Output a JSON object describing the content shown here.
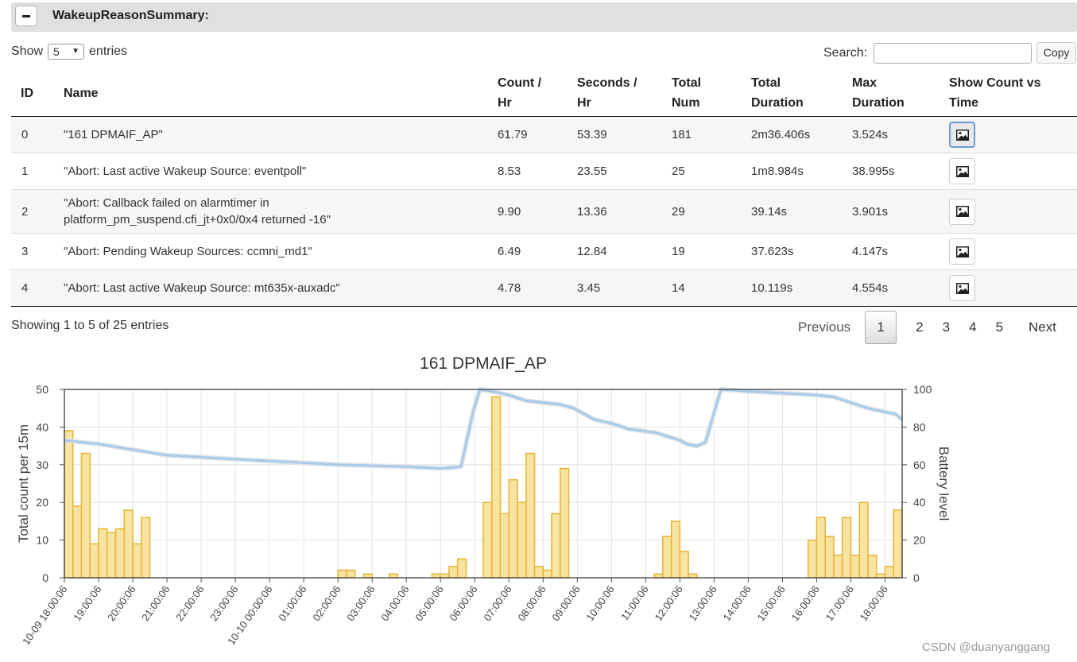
{
  "panel": {
    "title": "WakeupReasonSummary:"
  },
  "length": {
    "show_label": "Show",
    "value": "5",
    "entries_label": "entries"
  },
  "search": {
    "label": "Search:",
    "value": ""
  },
  "copy_label": "Copy",
  "table": {
    "headers": {
      "id": "ID",
      "name": "Name",
      "count_hr_1": "Count /",
      "count_hr_2": "Hr",
      "sec_hr_1": "Seconds /",
      "sec_hr_2": "Hr",
      "total_num_1": "Total",
      "total_num_2": "Num",
      "total_dur_1": "Total",
      "total_dur_2": "Duration",
      "max_dur_1": "Max",
      "max_dur_2": "Duration",
      "show_1": "Show Count vs",
      "show_2": "Time"
    },
    "rows": [
      {
        "id": "0",
        "name": "\"161 DPMAIF_AP\"",
        "name2": "",
        "count_hr": "61.79",
        "sec_hr": "53.39",
        "total_num": "181",
        "total_dur": "2m36.406s",
        "max_dur": "3.524s"
      },
      {
        "id": "1",
        "name": "\"Abort: Last active Wakeup Source: eventpoll\"",
        "name2": "",
        "count_hr": "8.53",
        "sec_hr": "23.55",
        "total_num": "25",
        "total_dur": "1m8.984s",
        "max_dur": "38.995s"
      },
      {
        "id": "2",
        "name": "\"Abort: Callback failed on alarmtimer in",
        "name2": "platform_pm_suspend.cfi_jt+0x0/0x4 returned -16\"",
        "count_hr": "9.90",
        "sec_hr": "13.36",
        "total_num": "29",
        "total_dur": "39.14s",
        "max_dur": "3.901s"
      },
      {
        "id": "3",
        "name": "\"Abort: Pending Wakeup Sources: ccmni_md1\"",
        "name2": "",
        "count_hr": "6.49",
        "sec_hr": "12.84",
        "total_num": "19",
        "total_dur": "37.623s",
        "max_dur": "4.147s"
      },
      {
        "id": "4",
        "name": "\"Abort: Last active Wakeup Source: mt635x-auxadc\"",
        "name2": "",
        "count_hr": "4.78",
        "sec_hr": "3.45",
        "total_num": "14",
        "total_dur": "10.119s",
        "max_dur": "4.554s"
      }
    ]
  },
  "info": "Showing 1 to 5 of 25 entries",
  "pagination": {
    "previous": "Previous",
    "pages": [
      "1",
      "2",
      "3",
      "4",
      "5"
    ],
    "next": "Next"
  },
  "colors": {
    "bar_fill": "#f8e3a0",
    "bar_stroke": "#e6b83a",
    "battery_line": "#a9cbe6"
  },
  "chart_data": {
    "type": "bar",
    "title": "161 DPMAIF_AP",
    "ylabel": "Total count per 15m",
    "y2label": "Battery level",
    "ylim": [
      0,
      50
    ],
    "y2lim": [
      0,
      100
    ],
    "yticks": [
      0,
      10,
      20,
      30,
      40,
      50
    ],
    "y2ticks": [
      0,
      20,
      40,
      60,
      80,
      100
    ],
    "xlim_hours": [
      0,
      24.5
    ],
    "xticks": [
      "10-09 18:00:06",
      "19:00:06",
      "20:00:06",
      "21:00:06",
      "22:00:06",
      "23:00:06",
      "10-10 00:00:06",
      "01:00:06",
      "02:00:06",
      "03:00:06",
      "04:00:06",
      "05:00:06",
      "06:00:06",
      "07:00:06",
      "08:00:06",
      "09:00:06",
      "10:00:06",
      "11:00:06",
      "12:00:06",
      "13:00:06",
      "14:00:06",
      "15:00:06",
      "16:00:06",
      "17:00:06",
      "18:00:06"
    ],
    "series": [
      {
        "name": "Total count per 15m",
        "type": "bar",
        "points": [
          [
            0.0,
            39
          ],
          [
            0.25,
            19
          ],
          [
            0.5,
            33
          ],
          [
            0.75,
            9
          ],
          [
            1.0,
            13
          ],
          [
            1.25,
            12
          ],
          [
            1.5,
            13
          ],
          [
            1.75,
            18
          ],
          [
            2.0,
            9
          ],
          [
            2.25,
            16
          ],
          [
            8.0,
            2
          ],
          [
            8.25,
            2
          ],
          [
            8.75,
            1
          ],
          [
            9.5,
            1
          ],
          [
            10.75,
            1
          ],
          [
            11.0,
            1
          ],
          [
            11.25,
            3
          ],
          [
            11.5,
            5
          ],
          [
            12.25,
            20
          ],
          [
            12.5,
            48
          ],
          [
            12.75,
            17
          ],
          [
            13.0,
            26
          ],
          [
            13.25,
            20
          ],
          [
            13.5,
            33
          ],
          [
            13.75,
            3
          ],
          [
            14.0,
            2
          ],
          [
            14.25,
            17
          ],
          [
            14.5,
            29
          ],
          [
            17.25,
            1
          ],
          [
            17.5,
            11
          ],
          [
            17.75,
            15
          ],
          [
            18.0,
            7
          ],
          [
            18.25,
            1
          ],
          [
            21.75,
            10
          ],
          [
            22.0,
            16
          ],
          [
            22.25,
            11
          ],
          [
            22.5,
            6
          ],
          [
            22.75,
            16
          ],
          [
            23.0,
            6
          ],
          [
            23.25,
            20
          ],
          [
            23.5,
            6
          ],
          [
            23.75,
            1
          ],
          [
            24.0,
            3
          ],
          [
            24.25,
            18
          ]
        ]
      },
      {
        "name": "Battery level",
        "type": "line",
        "points": [
          [
            0,
            73
          ],
          [
            1,
            71
          ],
          [
            2,
            68
          ],
          [
            3,
            65
          ],
          [
            4,
            64
          ],
          [
            5,
            63
          ],
          [
            6,
            62
          ],
          [
            7,
            61
          ],
          [
            8,
            60
          ],
          [
            9,
            59.5
          ],
          [
            10,
            59
          ],
          [
            11,
            58
          ],
          [
            11.6,
            59
          ],
          [
            11.95,
            88
          ],
          [
            12.15,
            100
          ],
          [
            12.5,
            99
          ],
          [
            13,
            97
          ],
          [
            13.5,
            94
          ],
          [
            14,
            93
          ],
          [
            14.5,
            92
          ],
          [
            14.9,
            90
          ],
          [
            15.5,
            84
          ],
          [
            16,
            82
          ],
          [
            16.5,
            79
          ],
          [
            17.3,
            77
          ],
          [
            18.0,
            73
          ],
          [
            18.2,
            71
          ],
          [
            18.5,
            70
          ],
          [
            18.75,
            72
          ],
          [
            19.2,
            100
          ],
          [
            20,
            99
          ],
          [
            21,
            98
          ],
          [
            22,
            97
          ],
          [
            22.5,
            96
          ],
          [
            23,
            93
          ],
          [
            23.5,
            90
          ],
          [
            24,
            88
          ],
          [
            24.3,
            87
          ],
          [
            24.5,
            84
          ]
        ]
      }
    ]
  },
  "watermark": "CSDN @duanyanggang"
}
